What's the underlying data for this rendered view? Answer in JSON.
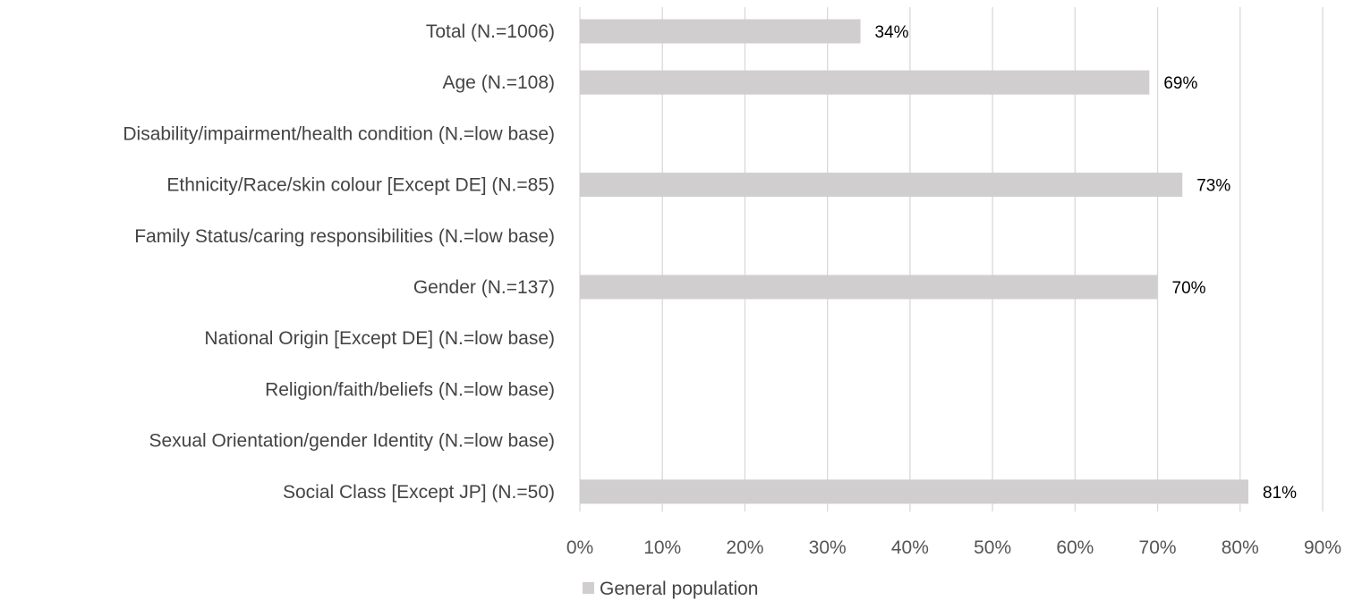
{
  "chart_data": {
    "type": "bar",
    "orientation": "horizontal",
    "title": "",
    "xlabel": "",
    "ylabel": "",
    "categories": [
      "Total  (N.=1006)",
      "Age (N.=108)",
      "Disability/impairment/health condition (N.=low base)",
      "Ethnicity/Race/skin colour [Except DE] (N.=85)",
      "Family Status/caring responsibilities  (N.=low base)",
      "Gender (N.=137)",
      "National Origin [Except DE] (N.=low base)",
      "Religion/faith/beliefs (N.=low base)",
      "Sexual Orientation/gender Identity (N.=low base)",
      "Social Class [Except JP] (N.=50)"
    ],
    "series": [
      {
        "name": "General population",
        "color": "#d0cece",
        "values": [
          34,
          69,
          null,
          73,
          null,
          70,
          null,
          null,
          null,
          81
        ],
        "data_labels": [
          "34%",
          "69%",
          "",
          "73%",
          "",
          "70%",
          "",
          "",
          "",
          "81%"
        ]
      }
    ],
    "xlim": [
      0,
      90
    ],
    "x_ticks": [
      "0%",
      "10%",
      "20%",
      "30%",
      "40%",
      "50%",
      "60%",
      "70%",
      "80%",
      "90%"
    ],
    "grid": "vertical",
    "gridline_color": "#d9d9d9",
    "legend_position": "bottom"
  }
}
